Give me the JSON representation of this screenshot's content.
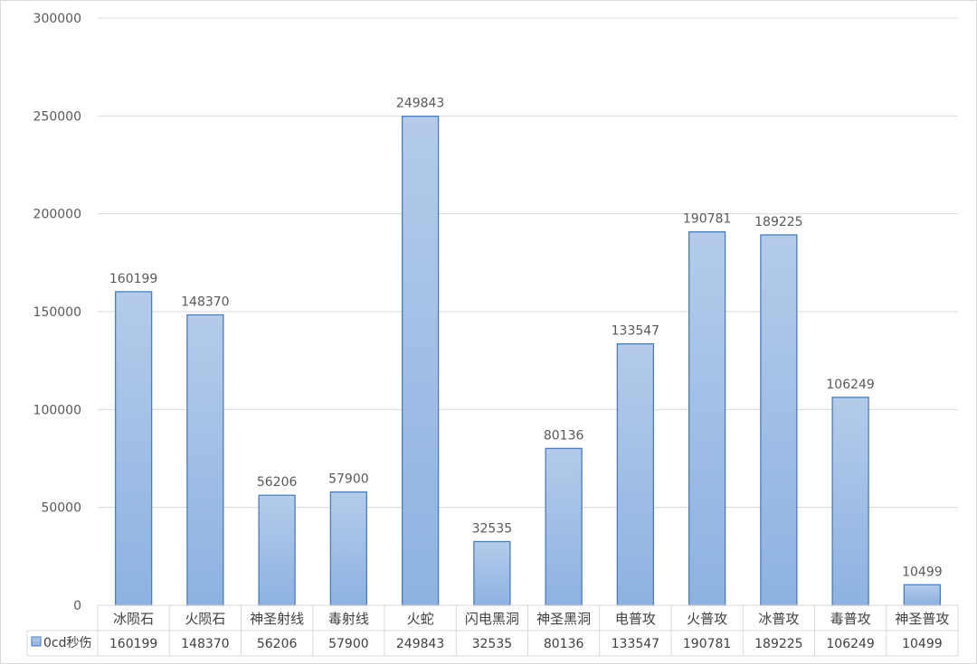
{
  "chart_data": {
    "type": "bar",
    "categories": [
      "冰陨石",
      "火陨石",
      "神圣射线",
      "毒射线",
      "火蛇",
      "闪电黑洞",
      "神圣黑洞",
      "电普攻",
      "火普攻",
      "冰普攻",
      "毒普攻",
      "神圣普攻"
    ],
    "series": [
      {
        "name": "0cd秒伤",
        "values": [
          160199,
          148370,
          56206,
          57900,
          249843,
          32535,
          80136,
          133547,
          190781,
          189225,
          106249,
          10499
        ],
        "color": "#8fb4e3"
      }
    ],
    "ylim": [
      0,
      300000
    ],
    "yticks": [
      0,
      50000,
      100000,
      150000,
      200000,
      250000,
      300000
    ],
    "grid": true,
    "data_table": true,
    "legend": "data-table-left"
  }
}
